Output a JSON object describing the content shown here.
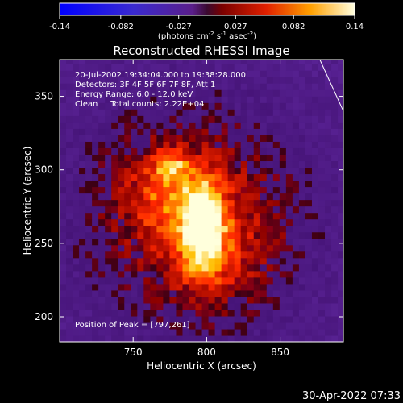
{
  "colorbar": {
    "ticks": [
      "-0.14",
      "-0.082",
      "-0.027",
      "0.027",
      "0.082",
      "0.14"
    ],
    "range": [
      -0.14,
      0.14
    ],
    "units_text": "(photons cm",
    "units_exp1": "-2",
    "units_mid": " s",
    "units_exp2": "-1",
    "units_end": " asec",
    "units_exp3": "-2",
    "units_close": ")"
  },
  "chart_data": {
    "type": "heatmap",
    "title": "Reconstructed RHESSI Image",
    "xlabel": "Heliocentric X (arcsec)",
    "ylabel": "Heliocentric Y (arcsec)",
    "xlim": [
      700,
      893
    ],
    "ylim": [
      183,
      375
    ],
    "x_ticks": [
      750,
      800,
      850
    ],
    "y_ticks": [
      200,
      250,
      300,
      350
    ],
    "colormap": "hot (RHESSI color table, blue-purple negative to white positive)",
    "annotation_lines": [
      "20-Jul-2002 19:34:04.000 to 19:38:28.000",
      "Detectors: 3F 4F 5F 6F 7F 8F, Att 1",
      "Energy Range: 6.0 - 12.0 keV",
      "Clean     Total counts: 2.22E+04"
    ],
    "peak_label": "Position of Peak = [797,261]",
    "peak_position": [
      797,
      261
    ],
    "sources": [
      {
        "x": 797,
        "y": 262,
        "sigma_x": 10,
        "sigma_y": 22,
        "amplitude": 1.0
      },
      {
        "x": 776,
        "y": 303,
        "sigma_x": 7,
        "sigma_y": 6,
        "amplitude": 0.55
      },
      {
        "x": 770,
        "y": 285,
        "sigma_x": 18,
        "sigma_y": 20,
        "amplitude": 0.35
      },
      {
        "x": 810,
        "y": 245,
        "sigma_x": 25,
        "sigma_y": 30,
        "amplitude": 0.25
      }
    ],
    "limb_line": {
      "start": [
        877,
        375
      ],
      "end": [
        893,
        340
      ]
    }
  },
  "footer": {
    "timestamp": "30-Apr-2022 07:33"
  },
  "colors": {
    "background": "#000000",
    "foreground": "#ffffff"
  }
}
